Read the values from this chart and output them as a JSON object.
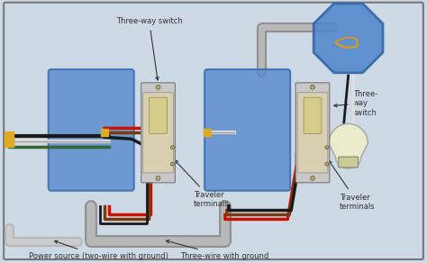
{
  "bg_color": "#cdd9e5",
  "border_color": "#777777",
  "labels": {
    "three_way_switch_1": "Three-way switch",
    "three_way_switch_2": "Three-\nway\nswitch",
    "traveler_terminals_1": "Traveler\nterminals",
    "traveler_terminals_2": "Traveler\nterminals",
    "power_source": "Power source (two-wire with ground)",
    "three_wire": "Three-wire with ground"
  },
  "wire_colors": {
    "black": "#1a1a1a",
    "white": "#e0e0e0",
    "red": "#cc1100",
    "brown": "#7a3a10",
    "gray": "#aaaaaa",
    "ground_green": "#336633",
    "cable_sheath": "#b8b8b8",
    "cable_dark": "#909090"
  }
}
